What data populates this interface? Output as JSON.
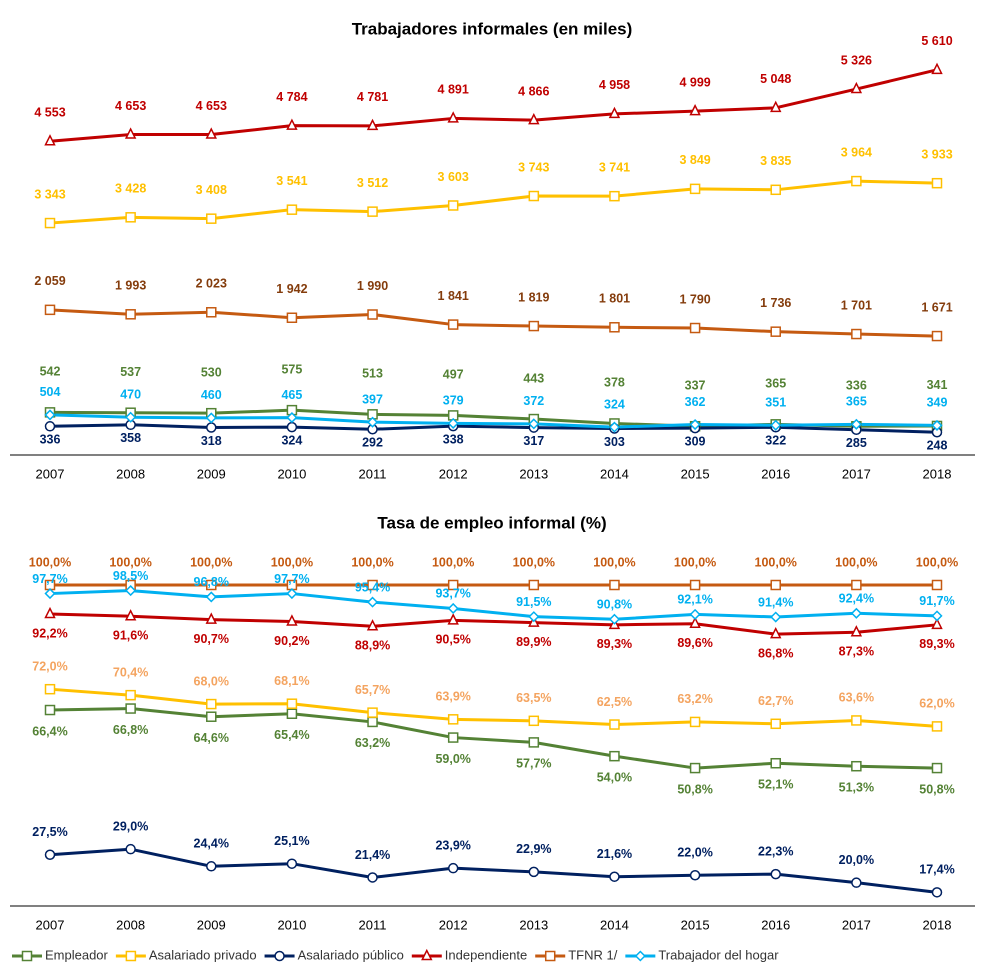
{
  "chart_data": [
    {
      "type": "line",
      "title": "Trabajadores informales (en miles)",
      "categories": [
        "2007",
        "2008",
        "2009",
        "2010",
        "2011",
        "2012",
        "2013",
        "2014",
        "2015",
        "2016",
        "2017",
        "2018"
      ],
      "ylim": [
        0,
        5800
      ],
      "series": [
        {
          "name": "Empleador",
          "color": "#548235",
          "marker": "square",
          "values": [
            542,
            537,
            530,
            575,
            513,
            497,
            443,
            378,
            337,
            365,
            336,
            341
          ]
        },
        {
          "name": "Asalariado privado",
          "color": "#FFC000",
          "marker": "square",
          "values": [
            3343,
            3428,
            3408,
            3541,
            3512,
            3603,
            3743,
            3741,
            3849,
            3835,
            3964,
            3933
          ],
          "value_labels": [
            "3 343",
            "3 428",
            "3 408",
            "3 541",
            "3 512",
            "3 603",
            "3 743",
            "3 741",
            "3 849",
            "3 835",
            "3 964",
            "3 933"
          ]
        },
        {
          "name": "Asalariado público",
          "color": "#002060",
          "marker": "circle",
          "values": [
            336,
            358,
            318,
            324,
            292,
            338,
            317,
            303,
            309,
            322,
            285,
            248
          ]
        },
        {
          "name": "Independiente",
          "color": "#C00000",
          "marker": "triangle",
          "values": [
            4553,
            4653,
            4653,
            4784,
            4781,
            4891,
            4866,
            4958,
            4999,
            5048,
            5326,
            5610
          ],
          "value_labels": [
            "4 553",
            "4 653",
            "4 653",
            "4 784",
            "4 781",
            "4 891",
            "4 866",
            "4 958",
            "4 999",
            "5 048",
            "5 326",
            "5 610"
          ]
        },
        {
          "name": "TFNR 1/",
          "color": "#C55A11",
          "label_color": "#843C0C",
          "marker": "square",
          "values": [
            2059,
            1993,
            2023,
            1942,
            1990,
            1841,
            1819,
            1801,
            1790,
            1736,
            1701,
            1671
          ],
          "value_labels": [
            "2 059",
            "1 993",
            "2 023",
            "1 942",
            "1 990",
            "1 841",
            "1 819",
            "1 801",
            "1 790",
            "1 736",
            "1 701",
            "1 671"
          ]
        },
        {
          "name": "Trabajador del hogar",
          "color": "#00B0F0",
          "marker": "diamond",
          "values": [
            504,
            470,
            460,
            465,
            397,
            379,
            372,
            324,
            362,
            351,
            365,
            349
          ]
        }
      ]
    },
    {
      "type": "line",
      "title": "Tasa de empleo informal (%)",
      "categories": [
        "2007",
        "2008",
        "2009",
        "2010",
        "2011",
        "2012",
        "2013",
        "2014",
        "2015",
        "2016",
        "2017",
        "2018"
      ],
      "ylim": [
        14,
        105
      ],
      "series": [
        {
          "name": "Empleador",
          "color": "#548235",
          "marker": "square",
          "values": [
            66.4,
            66.8,
            64.6,
            65.4,
            63.2,
            59.0,
            57.7,
            54.0,
            50.8,
            52.1,
            51.3,
            50.8
          ],
          "value_labels": [
            "66,4%",
            "66,8%",
            "64,6%",
            "65,4%",
            "63,2%",
            "59,0%",
            "57,7%",
            "54,0%",
            "50,8%",
            "52,1%",
            "51,3%",
            "50,8%"
          ]
        },
        {
          "name": "Asalariado privado",
          "color": "#FFC000",
          "label_color": "#F4A460",
          "marker": "square",
          "values": [
            72.0,
            70.4,
            68.0,
            68.1,
            65.7,
            63.9,
            63.5,
            62.5,
            63.2,
            62.7,
            63.6,
            62.0
          ],
          "value_labels": [
            "72,0%",
            "70,4%",
            "68,0%",
            "68,1%",
            "65,7%",
            "63,9%",
            "63,5%",
            "62,5%",
            "63,2%",
            "62,7%",
            "63,6%",
            "62,0%"
          ]
        },
        {
          "name": "Asalariado público",
          "color": "#002060",
          "marker": "circle",
          "values": [
            27.5,
            29.0,
            24.4,
            25.1,
            21.4,
            23.9,
            22.9,
            21.6,
            22.0,
            22.3,
            20.0,
            17.4
          ],
          "value_labels": [
            "27,5%",
            "29,0%",
            "24,4%",
            "25,1%",
            "21,4%",
            "23,9%",
            "22,9%",
            "21,6%",
            "22,0%",
            "22,3%",
            "20,0%",
            "17,4%"
          ]
        },
        {
          "name": "Independiente",
          "color": "#C00000",
          "marker": "triangle",
          "values": [
            92.2,
            91.6,
            90.7,
            90.2,
            88.9,
            90.5,
            89.9,
            89.3,
            89.6,
            86.8,
            87.3,
            89.3
          ],
          "value_labels": [
            "92,2%",
            "91,6%",
            "90,7%",
            "90,2%",
            "88,9%",
            "90,5%",
            "89,9%",
            "89,3%",
            "89,6%",
            "86,8%",
            "87,3%",
            "89,3%"
          ]
        },
        {
          "name": "TFNR 1/",
          "color": "#C55A11",
          "marker": "square",
          "values": [
            100,
            100,
            100,
            100,
            100,
            100,
            100,
            100,
            100,
            100,
            100,
            100
          ],
          "value_labels": [
            "100,0%",
            "100,0%",
            "100,0%",
            "100,0%",
            "100,0%",
            "100,0%",
            "100,0%",
            "100,0%",
            "100,0%",
            "100,0%",
            "100,0%",
            "100,0%"
          ]
        },
        {
          "name": "Trabajador del hogar",
          "color": "#00B0F0",
          "marker": "diamond",
          "values": [
            97.7,
            98.5,
            96.8,
            97.7,
            95.4,
            93.7,
            91.5,
            90.8,
            92.1,
            91.4,
            92.4,
            91.7
          ],
          "value_labels": [
            "97,7%",
            "98,5%",
            "96,8%",
            "97,7%",
            "95,4%",
            "93,7%",
            "91,5%",
            "90,8%",
            "92,1%",
            "91,4%",
            "92,4%",
            "91,7%"
          ]
        }
      ]
    }
  ]
}
